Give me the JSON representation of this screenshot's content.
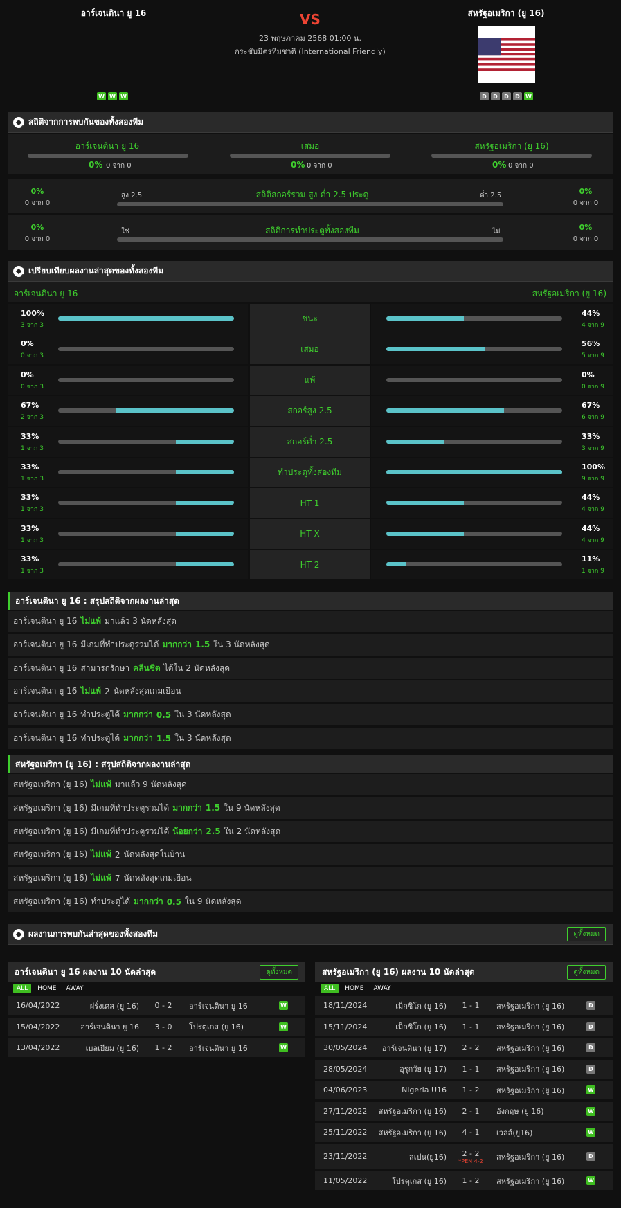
{
  "match": {
    "home": "อาร์เจนตินา ยู 16",
    "away": "สหรัฐอเมริกา (ยู 16)",
    "vs": "VS",
    "datetime": "23 พฤษภาคม 2568 01:00 น.",
    "competition": "กระชับมิตรทีมชาติ (International Friendly)",
    "home_form": [
      "W",
      "W",
      "W"
    ],
    "away_form": [
      "D",
      "D",
      "D",
      "D",
      "W"
    ]
  },
  "h2h_stats": {
    "title": "สถิติจากการพบกันของทั้งสองทีม",
    "home_label": "อาร์เจนตินา ยู 16",
    "draw_label": "เสมอ",
    "away_label": "สหรัฐอเมริกา (ยู 16)",
    "home_pct": "0%",
    "home_of": "0 จาก 0",
    "draw_pct": "0%",
    "draw_of": "0 จาก 0",
    "away_pct": "0%",
    "away_of": "0 จาก 0",
    "ou": {
      "title": "สถิติสกอร์รวม สูง-ต่ำ 2.5 ประตู",
      "over": "สูง 2.5",
      "under": "ต่ำ 2.5",
      "l_pct": "0%",
      "l_of": "0 จาก 0",
      "r_pct": "0%",
      "r_of": "0 จาก 0"
    },
    "btts": {
      "title": "สถิติการทำประตูทั้งสองทีม",
      "yes": "ใช่",
      "no": "ไม่",
      "l_pct": "0%",
      "l_of": "0 จาก 0",
      "r_pct": "0%",
      "r_of": "0 จาก 0"
    }
  },
  "compare": {
    "title": "เปรียบเทียบผลงานล่าสุดของทั้งสองทีม",
    "home": "อาร์เจนตินา ยู 16",
    "away": "สหรัฐอเมริกา (ยู 16)",
    "rows": [
      {
        "label": "ชนะ",
        "l_pct": "100%",
        "l_of": "3 จาก 3",
        "l_val": 1.0,
        "r_pct": "44%",
        "r_of": "4 จาก 9",
        "r_val": 0.44
      },
      {
        "label": "เสมอ",
        "l_pct": "0%",
        "l_of": "0 จาก 3",
        "l_val": 0,
        "r_pct": "56%",
        "r_of": "5 จาก 9",
        "r_val": 0.56
      },
      {
        "label": "แพ้",
        "l_pct": "0%",
        "l_of": "0 จาก 3",
        "l_val": 0,
        "r_pct": "0%",
        "r_of": "0 จาก 9",
        "r_val": 0
      },
      {
        "label": "สกอร์สูง 2.5",
        "l_pct": "67%",
        "l_of": "2 จาก 3",
        "l_val": 0.67,
        "r_pct": "67%",
        "r_of": "6 จาก 9",
        "r_val": 0.67
      },
      {
        "label": "สกอร์ต่ำ 2.5",
        "l_pct": "33%",
        "l_of": "1 จาก 3",
        "l_val": 0.33,
        "r_pct": "33%",
        "r_of": "3 จาก 9",
        "r_val": 0.33
      },
      {
        "label": "ทำประตูทั้งสองทีม",
        "l_pct": "33%",
        "l_of": "1 จาก 3",
        "l_val": 0.33,
        "r_pct": "100%",
        "r_of": "9 จาก 9",
        "r_val": 1.0
      },
      {
        "label": "HT 1",
        "l_pct": "33%",
        "l_of": "1 จาก 3",
        "l_val": 0.33,
        "r_pct": "44%",
        "r_of": "4 จาก 9",
        "r_val": 0.44
      },
      {
        "label": "HT X",
        "l_pct": "33%",
        "l_of": "1 จาก 3",
        "l_val": 0.33,
        "r_pct": "44%",
        "r_of": "4 จาก 9",
        "r_val": 0.44
      },
      {
        "label": "HT 2",
        "l_pct": "33%",
        "l_of": "1 จาก 3",
        "l_val": 0.33,
        "r_pct": "11%",
        "r_of": "1 จาก 9",
        "r_val": 0.11
      }
    ]
  },
  "home_summary": {
    "title": "อาร์เจนตินา ยู 16 : สรุปสถิติจากผลงานล่าสุด",
    "rows": [
      [
        {
          "t": "อาร์เจนตินา ยู 16"
        },
        {
          "t": "ไม่แพ้",
          "g": true
        },
        {
          "t": "มาแล้ว 3 นัดหลังสุด"
        }
      ],
      [
        {
          "t": "อาร์เจนตินา ยู 16"
        },
        {
          "t": "มีเกมที่ทำประตูรวมได้"
        },
        {
          "t": "มากกว่า",
          "g": true
        },
        {
          "t": "1.5",
          "g": true
        },
        {
          "t": "ใน 3 นัดหลังสุด"
        }
      ],
      [
        {
          "t": "อาร์เจนตินา ยู 16"
        },
        {
          "t": "สามารถรักษา"
        },
        {
          "t": "คลีนชีต",
          "g": true
        },
        {
          "t": "ได้ใน 2 นัดหลังสุด"
        }
      ],
      [
        {
          "t": "อาร์เจนตินา ยู 16"
        },
        {
          "t": "ไม่แพ้",
          "g": true
        },
        {
          "t": "2"
        },
        {
          "t": "นัดหลังสุดเกมเยือน"
        }
      ],
      [
        {
          "t": "อาร์เจนตินา ยู 16"
        },
        {
          "t": "ทำประตูได้"
        },
        {
          "t": "มากกว่า",
          "g": true
        },
        {
          "t": "0.5",
          "g": true
        },
        {
          "t": "ใน 3 นัดหลังสุด"
        }
      ],
      [
        {
          "t": "อาร์เจนตินา ยู 16"
        },
        {
          "t": "ทำประตูได้"
        },
        {
          "t": "มากกว่า",
          "g": true
        },
        {
          "t": "1.5",
          "g": true
        },
        {
          "t": "ใน 3 นัดหลังสุด"
        }
      ]
    ]
  },
  "away_summary": {
    "title": "สหรัฐอเมริกา (ยู 16) : สรุปสถิติจากผลงานล่าสุด",
    "rows": [
      [
        {
          "t": "สหรัฐอเมริกา (ยู 16)"
        },
        {
          "t": "ไม่แพ้",
          "g": true
        },
        {
          "t": "มาแล้ว 9 นัดหลังสุด"
        }
      ],
      [
        {
          "t": "สหรัฐอเมริกา (ยู 16)"
        },
        {
          "t": "มีเกมที่ทำประตูรวมได้"
        },
        {
          "t": "มากกว่า",
          "g": true
        },
        {
          "t": "1.5",
          "g": true
        },
        {
          "t": "ใน 9 นัดหลังสุด"
        }
      ],
      [
        {
          "t": "สหรัฐอเมริกา (ยู 16)"
        },
        {
          "t": "มีเกมที่ทำประตูรวมได้"
        },
        {
          "t": "น้อยกว่า",
          "g": true
        },
        {
          "t": "2.5",
          "g": true
        },
        {
          "t": "ใน 2 นัดหลังสุด"
        }
      ],
      [
        {
          "t": "สหรัฐอเมริกา (ยู 16)"
        },
        {
          "t": "ไม่แพ้",
          "g": true
        },
        {
          "t": "2"
        },
        {
          "t": "นัดหลังสุดในบ้าน"
        }
      ],
      [
        {
          "t": "สหรัฐอเมริกา (ยู 16)"
        },
        {
          "t": "ไม่แพ้",
          "g": true
        },
        {
          "t": "7"
        },
        {
          "t": "นัดหลังสุดเกมเยือน"
        }
      ],
      [
        {
          "t": "สหรัฐอเมริกา (ยู 16)"
        },
        {
          "t": "ทำประตูได้"
        },
        {
          "t": "มากกว่า",
          "g": true
        },
        {
          "t": "0.5",
          "g": true
        },
        {
          "t": "ใน 9 นัดหลังสุด"
        }
      ]
    ]
  },
  "h2h_results": {
    "title": "ผลงานการพบกันล่าสุดของทั้งสองทีม",
    "view_all": "ดูทั้งหมด"
  },
  "home_last": {
    "title": "อาร์เจนตินา ยู 16 ผลงาน 10 นัดล่าสุด",
    "view_all": "ดูทั้งหมด",
    "tabs": [
      "ALL",
      "HOME",
      "AWAY"
    ],
    "matches": [
      {
        "date": "16/04/2022",
        "home": "ฝรั่งเศส (ยู 16)",
        "score": "0 - 2",
        "away": "อาร์เจนตินา ยู 16",
        "res": "W"
      },
      {
        "date": "15/04/2022",
        "home": "อาร์เจนตินา ยู 16",
        "score": "3 - 0",
        "away": "โปรตุเกส (ยู 16)",
        "res": "W"
      },
      {
        "date": "13/04/2022",
        "home": "เบลเยียม (ยู 16)",
        "score": "1 - 2",
        "away": "อาร์เจนตินา ยู 16",
        "res": "W"
      }
    ]
  },
  "away_last": {
    "title": "สหรัฐอเมริกา (ยู 16) ผลงาน 10 นัดล่าสุด",
    "view_all": "ดูทั้งหมด",
    "tabs": [
      "ALL",
      "HOME",
      "AWAY"
    ],
    "matches": [
      {
        "date": "18/11/2024",
        "home": "เม็กซิโก (ยู 16)",
        "score": "1 - 1",
        "away": "สหรัฐอเมริกา (ยู 16)",
        "res": "D"
      },
      {
        "date": "15/11/2024",
        "home": "เม็กซิโก (ยู 16)",
        "score": "1 - 1",
        "away": "สหรัฐอเมริกา (ยู 16)",
        "res": "D"
      },
      {
        "date": "30/05/2024",
        "home": "อาร์เจนตินา (ยู 17)",
        "score": "2 - 2",
        "away": "สหรัฐอเมริกา (ยู 16)",
        "res": "D"
      },
      {
        "date": "28/05/2024",
        "home": "อุรุกวัย (ยู 17)",
        "score": "1 - 1",
        "away": "สหรัฐอเมริกา (ยู 16)",
        "res": "D"
      },
      {
        "date": "04/06/2023",
        "home": "Nigeria U16",
        "score": "1 - 2",
        "away": "สหรัฐอเมริกา (ยู 16)",
        "res": "W"
      },
      {
        "date": "27/11/2022",
        "home": "สหรัฐอเมริกา (ยู 16)",
        "score": "2 - 1",
        "away": "อังกฤษ (ยู 16)",
        "res": "W"
      },
      {
        "date": "25/11/2022",
        "home": "สหรัฐอเมริกา (ยู 16)",
        "score": "4 - 1",
        "away": "เวลส์(ยู16)",
        "res": "W"
      },
      {
        "date": "23/11/2022",
        "home": "สเปน(ยู16)",
        "score": "2 - 2",
        "pen": "*PEN 4-2",
        "away": "สหรัฐอเมริกา (ยู 16)",
        "res": "D"
      },
      {
        "date": "11/05/2022",
        "home": "โปรตุเกส (ยู 16)",
        "score": "1 - 2",
        "away": "สหรัฐอเมริกา (ยู 16)",
        "res": "W"
      }
    ]
  },
  "colors": {
    "accent": "#3fcf2e",
    "bar_fill": "#5bc3c9",
    "win": "#3fbe21",
    "draw": "#777777",
    "vs": "#ee4433"
  }
}
